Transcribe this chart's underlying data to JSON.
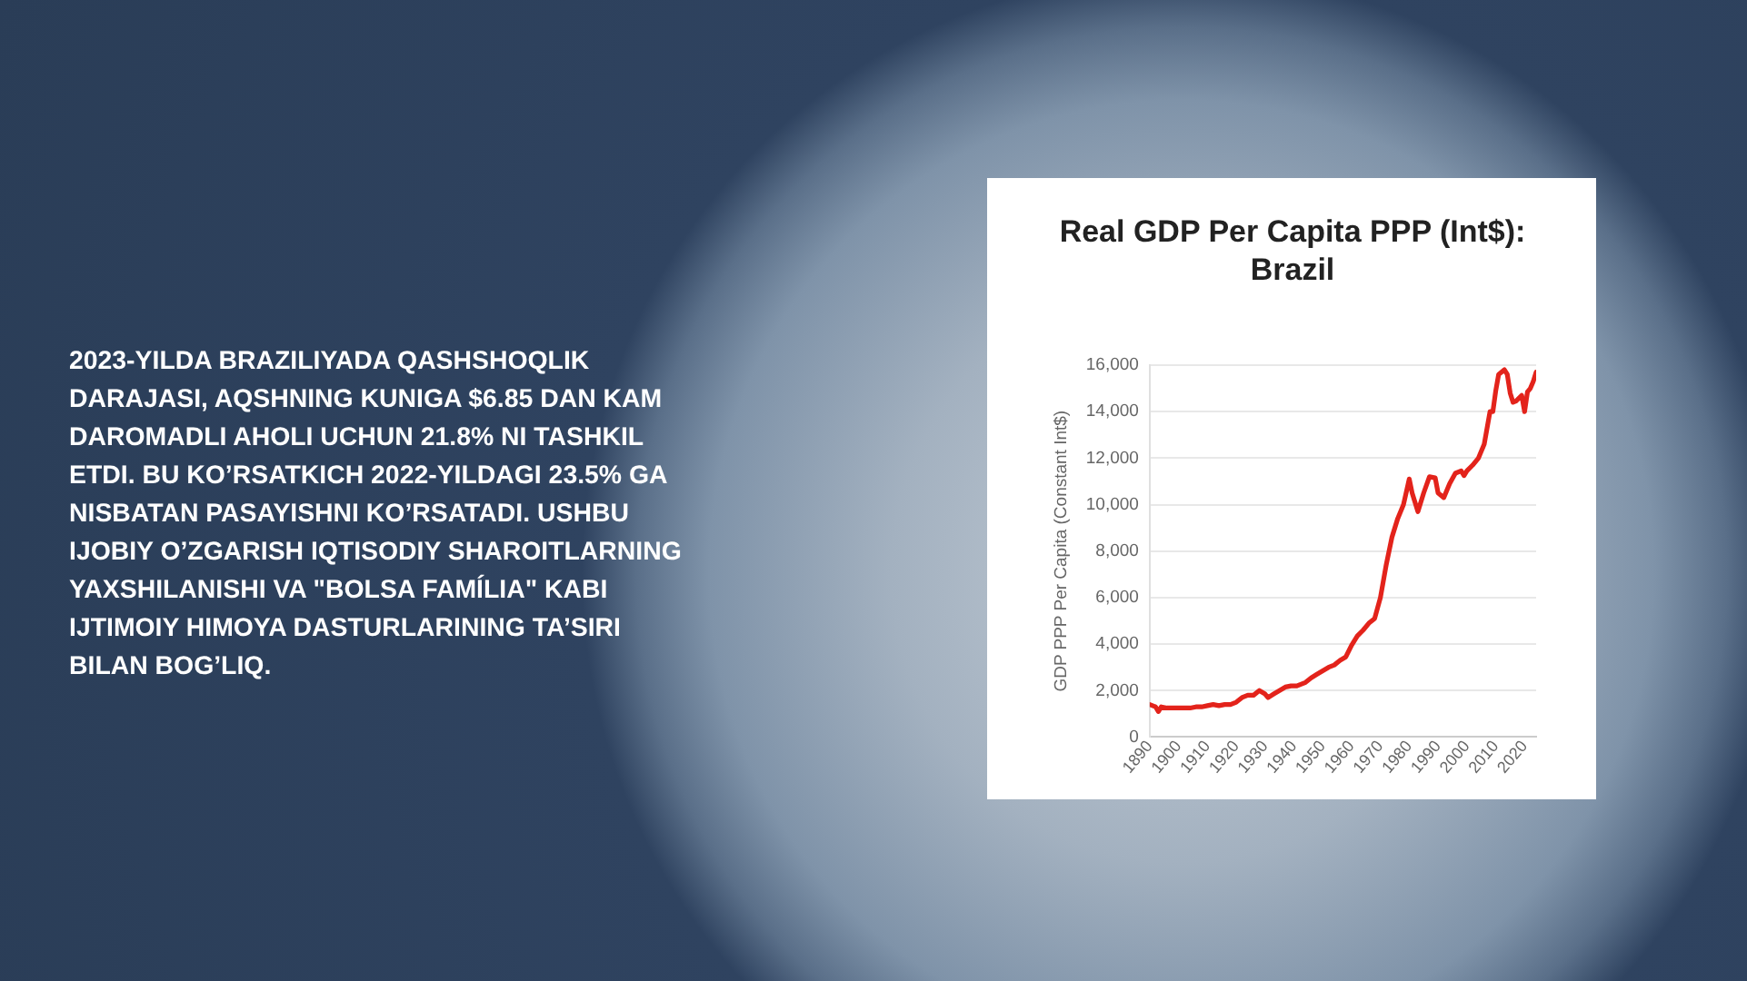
{
  "chart_data": {
    "type": "line",
    "title": "Real GDP Per Capita PPP (Int$): Brazil",
    "ylabel": "GDP PPP Per Capita (Constant Int$)",
    "annotations": [
      "2023-YILDA BRAZILIYADA QASHSHOQLIK DARAJASI, AQSHNING KUNIGA $6.85 DAN KAM DAROMADLI AHOLI UCHUN 21.8% NI TASHKIL ETDI. BU KO’RSATKICH 2022-YILDAGI 23.5% GA NISBATAN PASAYISHNI KO’RSATADI. USHBU IJOBIY O’ZGARISH IQTISODIY SHAROITLARNING YAXSHILANISHI VA \"BOLSA FAMÍLIA\" KABI IJTIMOIY HIMOYA DASTURLARINING TA’SIRI BILAN BOG’LIQ."
    ],
    "x": [
      1890,
      1892,
      1893,
      1894,
      1896,
      1898,
      1900,
      1902,
      1904,
      1906,
      1908,
      1910,
      1912,
      1914,
      1916,
      1918,
      1920,
      1922,
      1924,
      1926,
      1928,
      1930,
      1931,
      1933,
      1935,
      1937,
      1939,
      1941,
      1942,
      1944,
      1946,
      1948,
      1950,
      1952,
      1954,
      1956,
      1958,
      1960,
      1962,
      1964,
      1966,
      1968,
      1970,
      1972,
      1974,
      1976,
      1978,
      1980,
      1981,
      1983,
      1985,
      1987,
      1989,
      1990,
      1992,
      1994,
      1996,
      1998,
      1999,
      2000,
      2002,
      2004,
      2006,
      2008,
      2009,
      2010,
      2011,
      2013,
      2014,
      2015,
      2016,
      2017,
      2019,
      2020,
      2021,
      2022,
      2023,
      2024
    ],
    "values": [
      1400,
      1300,
      1100,
      1300,
      1250,
      1250,
      1250,
      1250,
      1250,
      1300,
      1300,
      1350,
      1400,
      1350,
      1400,
      1400,
      1500,
      1700,
      1800,
      1800,
      2000,
      1850,
      1700,
      1850,
      2000,
      2150,
      2200,
      2200,
      2250,
      2350,
      2550,
      2700,
      2850,
      3000,
      3100,
      3300,
      3450,
      3950,
      4350,
      4600,
      4900,
      5100,
      6000,
      7400,
      8600,
      9400,
      10000,
      11100,
      10500,
      9700,
      10500,
      11200,
      11150,
      10500,
      10300,
      10900,
      11350,
      11450,
      11250,
      11450,
      11700,
      12000,
      12600,
      14000,
      14000,
      14900,
      15600,
      15800,
      15600,
      14800,
      14400,
      14450,
      14700,
      14000,
      14850,
      15000,
      15300,
      15700
    ],
    "color": "#e3231b",
    "marker": "none",
    "line_style": "solid",
    "xlim": [
      1890,
      2024
    ],
    "xticks": [
      1890,
      1900,
      1910,
      1920,
      1930,
      1940,
      1950,
      1960,
      1970,
      1980,
      1990,
      2000,
      2010,
      2020
    ],
    "ylim": [
      0,
      16000
    ],
    "yticks": [
      0,
      {
        "value": 2000,
        "label": "2,000"
      },
      {
        "value": 4000,
        "label": "4,000"
      },
      {
        "value": 6000,
        "label": "6,000"
      },
      {
        "value": 8000,
        "label": "8,000"
      },
      {
        "value": 10000,
        "label": "10,000"
      },
      {
        "value": 12000,
        "label": "12,000"
      },
      {
        "value": 14000,
        "label": "14,000"
      },
      {
        "value": 16000,
        "label": "16,000"
      }
    ],
    "grid": "y",
    "legend": false
  }
}
